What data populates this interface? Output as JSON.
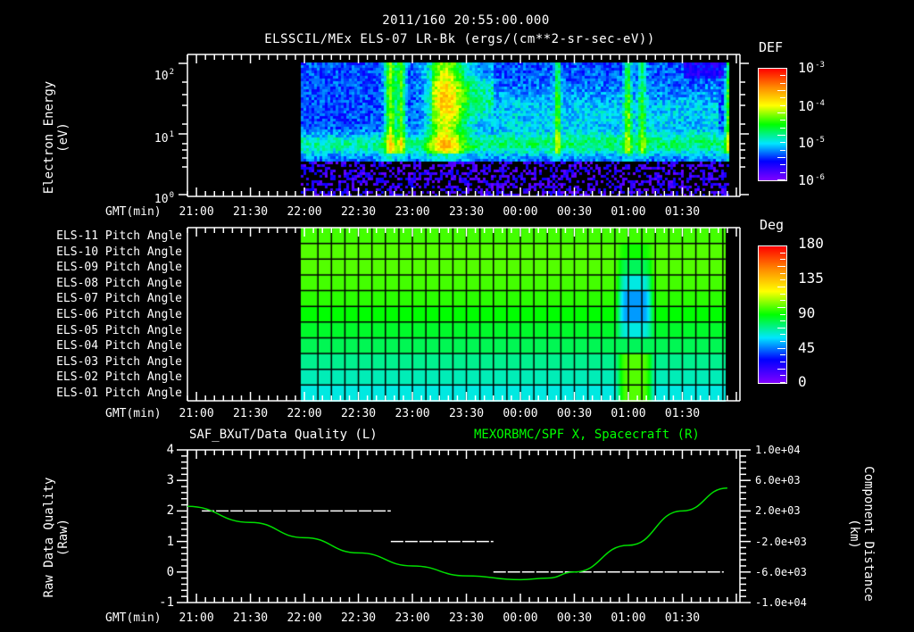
{
  "header": {
    "timestamp": "2011/160 20:55:00.000",
    "subtitle": "ELSSCIL/MEx ELS-07 LR-Bk  (ergs/(cm**2-sr-sec-eV))"
  },
  "time_axis": {
    "label": "GMT(min)",
    "ticks": [
      "21:00",
      "21:30",
      "22:00",
      "22:30",
      "23:00",
      "23:30",
      "00:00",
      "00:30",
      "01:00",
      "01:30"
    ]
  },
  "panel1": {
    "ylabel_line1": "Electron Energy",
    "ylabel_line2": "(eV)",
    "yticks": [
      {
        "base": "10",
        "exp": "2"
      },
      {
        "base": "10",
        "exp": "1"
      },
      {
        "base": "10",
        "exp": "0"
      }
    ],
    "colorbar": {
      "title": "DEF",
      "ticks": [
        {
          "base": "10",
          "exp": "-3"
        },
        {
          "base": "10",
          "exp": "-4"
        },
        {
          "base": "10",
          "exp": "-5"
        },
        {
          "base": "10",
          "exp": "-6"
        }
      ]
    }
  },
  "panel2": {
    "row_labels": [
      "ELS-11 Pitch Angle",
      "ELS-10 Pitch Angle",
      "ELS-09 Pitch Angle",
      "ELS-08 Pitch Angle",
      "ELS-07 Pitch Angle",
      "ELS-06 Pitch Angle",
      "ELS-05 Pitch Angle",
      "ELS-04 Pitch Angle",
      "ELS-03 Pitch Angle",
      "ELS-02 Pitch Angle",
      "ELS-01 Pitch Angle"
    ],
    "colorbar": {
      "title": "Deg",
      "ticks": [
        "180",
        "135",
        "90",
        "45",
        "0"
      ]
    }
  },
  "panel3": {
    "title_left": "SAF_BXuT/Data Quality (L)",
    "title_right": "MEXORBMC/SPF X, Spacecraft (R)",
    "ylabel_left_line1": "Raw Data Quality",
    "ylabel_left_line2": "(Raw)",
    "yticks_left": [
      "4",
      "3",
      "2",
      "1",
      "0",
      "-1"
    ],
    "ylabel_right_line1": "Component Distance",
    "ylabel_right_line2": "(km)",
    "yticks_right": [
      "1.0e+04",
      "6.0e+03",
      "2.0e+03",
      "-2.0e+03",
      "-6.0e+03",
      "-1.0e+04"
    ],
    "colors": {
      "quality": "#ffffff",
      "position": "#00dd00"
    }
  },
  "chart_data": [
    {
      "type": "heatmap",
      "title": "ELSSCIL/MEx ELS-07 LR-Bk (ergs/(cm**2-sr-sec-eV))",
      "xlabel": "GMT(min)",
      "ylabel": "Electron Energy (eV)",
      "x_ticks": [
        "21:00",
        "21:30",
        "22:00",
        "22:30",
        "23:00",
        "23:30",
        "00:00",
        "00:30",
        "01:00",
        "01:30"
      ],
      "y_scale": "log",
      "ylim": [
        1,
        150
      ],
      "data_start": "21:58",
      "data_end": "01:56",
      "colorbar": {
        "label": "DEF",
        "scale": "log",
        "range": [
          1e-06,
          0.001
        ]
      },
      "features": [
        {
          "desc": "cyan band ~5-10 eV",
          "time": "21:58-22:50",
          "level": "~1e-5"
        },
        {
          "desc": "green bursts 10-100 eV",
          "time": "22:45-22:55",
          "level": "~1e-4"
        },
        {
          "desc": "broad green region 10-100 eV",
          "time": "23:13-23:40",
          "level": "~1e-4"
        },
        {
          "desc": "green burst",
          "time": "00:20",
          "level": "~5e-5"
        },
        {
          "desc": "green burst",
          "time": "00:57-01:02",
          "level": "~5e-5"
        },
        {
          "desc": "green edge",
          "time": "01:55",
          "level": "~5e-5"
        },
        {
          "desc": "noise floor below ~3 eV",
          "level": "~1e-6"
        }
      ]
    },
    {
      "type": "heatmap",
      "title": "ELS Pitch Angle",
      "xlabel": "GMT(min)",
      "y_categories": [
        "ELS-11",
        "ELS-10",
        "ELS-09",
        "ELS-08",
        "ELS-07",
        "ELS-06",
        "ELS-05",
        "ELS-04",
        "ELS-03",
        "ELS-02",
        "ELS-01"
      ],
      "colorbar": {
        "label": "Deg",
        "range": [
          0,
          180
        ]
      },
      "data_start": "21:58",
      "data_end": "01:54",
      "baseline_deg_by_row": [
        98,
        100,
        100,
        98,
        95,
        90,
        85,
        80,
        73,
        68,
        63
      ],
      "anomaly": {
        "time": "00:52-01:15",
        "center_rows": [
          "ELS-07",
          "ELS-06"
        ],
        "min_deg": 48,
        "bottom_rows_deg": 100
      }
    },
    {
      "type": "line",
      "title_left": "SAF_BXuT/Data Quality (L)",
      "title_right": "MEXORBMC/SPF X, Spacecraft (R)",
      "xlabel": "GMT(min)",
      "ylabel_left": "Raw Data Quality (Raw)",
      "ylim_left": [
        -1,
        4
      ],
      "ylabel_right": "Component Distance (km)",
      "ylim_right": [
        -10000,
        10000
      ],
      "series": [
        {
          "name": "Data Quality",
          "axis": "left",
          "style": "dashed",
          "segments": [
            {
              "from": "21:03",
              "to": "22:48",
              "value": 2
            },
            {
              "from": "22:48",
              "to": "23:45",
              "value": 1
            },
            {
              "from": "23:45",
              "to": "01:53",
              "value": 0
            }
          ]
        },
        {
          "name": "SPF X",
          "axis": "right",
          "style": "solid",
          "x": [
            "20:55",
            "21:30",
            "22:00",
            "22:30",
            "23:00",
            "23:30",
            "00:00",
            "00:15",
            "00:30",
            "01:00",
            "01:30",
            "01:55"
          ],
          "values": [
            2600,
            500,
            -1500,
            -3500,
            -5200,
            -6500,
            -7000,
            -6800,
            -6000,
            -2500,
            2000,
            5000
          ]
        }
      ]
    }
  ]
}
